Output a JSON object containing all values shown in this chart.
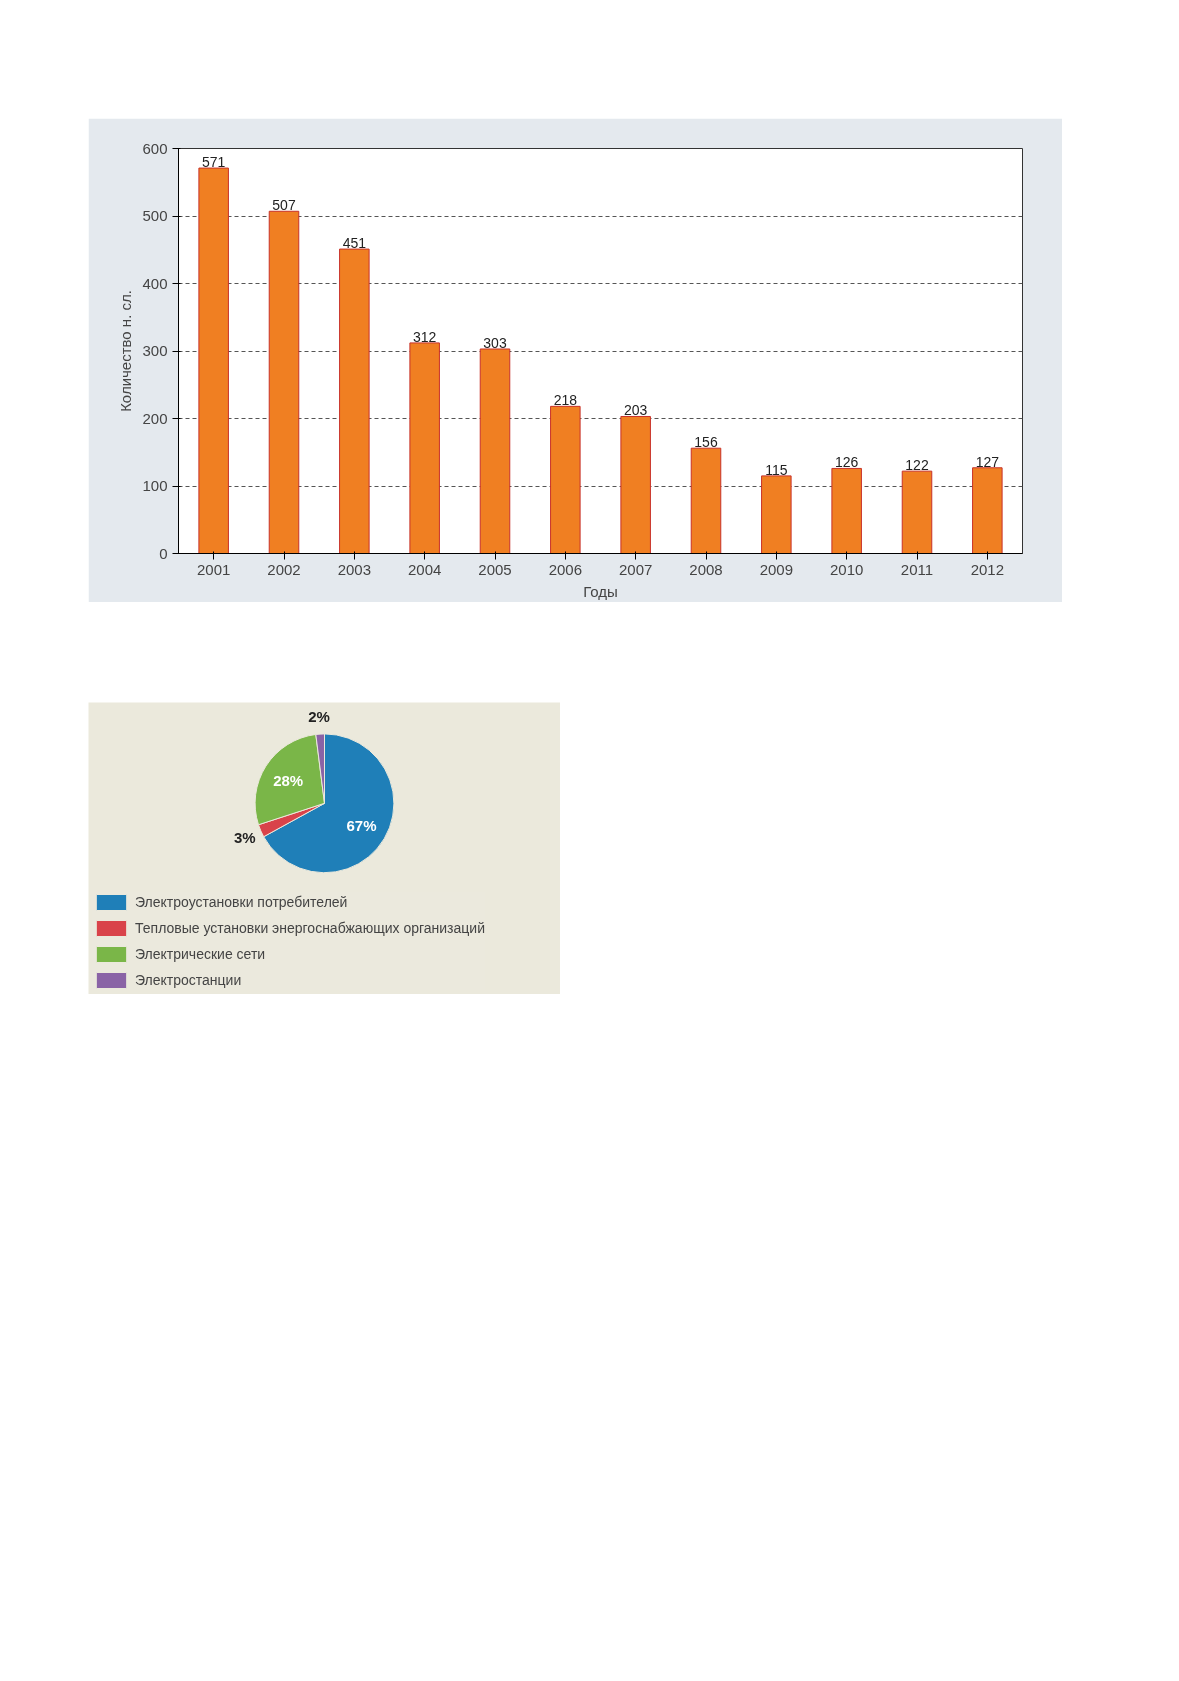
{
  "chart_data": [
    {
      "type": "bar",
      "xlabel": "Годы",
      "ylabel": "Количество н. сл.",
      "categories": [
        "2001",
        "2002",
        "2003",
        "2004",
        "2005",
        "2006",
        "2007",
        "2008",
        "2009",
        "2010",
        "2011",
        "2012"
      ],
      "values": [
        571,
        507,
        451,
        312,
        303,
        218,
        203,
        156,
        115,
        126,
        122,
        127
      ],
      "color": "#f07f22",
      "ylim": [
        0,
        600
      ],
      "yticks": [
        0,
        100,
        200,
        300,
        400,
        500,
        600
      ],
      "grid": "y",
      "data_labels": true
    },
    {
      "type": "pie",
      "categories": [
        "Электроустановки потребителей",
        "Тепловые установки энергоснабжающих организаций",
        "Электрические сети",
        "Электростанции"
      ],
      "values": [
        67,
        3,
        28,
        2
      ],
      "colors": [
        "#1f7fb8",
        "#d9434a",
        "#7ab648",
        "#8a63a6"
      ],
      "value_labels": [
        "67%",
        "3%",
        "28%",
        "2%"
      ],
      "legend": "bottom"
    }
  ]
}
